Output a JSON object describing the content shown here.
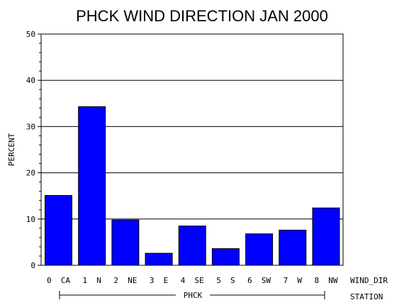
{
  "chart_data": {
    "type": "bar",
    "title": "PHCK WIND DIRECTION JAN 2000",
    "ylabel": "PERCENT",
    "xlabel": "WIND_DIR",
    "group_axis_label": "STATION",
    "group_name": "PHCK",
    "ylim": [
      0,
      50
    ],
    "yticks": [
      "0",
      "10",
      "20",
      "30",
      "40",
      "50"
    ],
    "grid": true,
    "categories": [
      "0 CA",
      "1 N",
      "2 NE",
      "3 E",
      "4 SE",
      "5 S",
      "6 SW",
      "7 W",
      "8 NW"
    ],
    "values": [
      15.1,
      34.3,
      9.8,
      2.6,
      8.5,
      3.6,
      6.8,
      7.6,
      12.4
    ],
    "bar_color": "#0000ff"
  }
}
